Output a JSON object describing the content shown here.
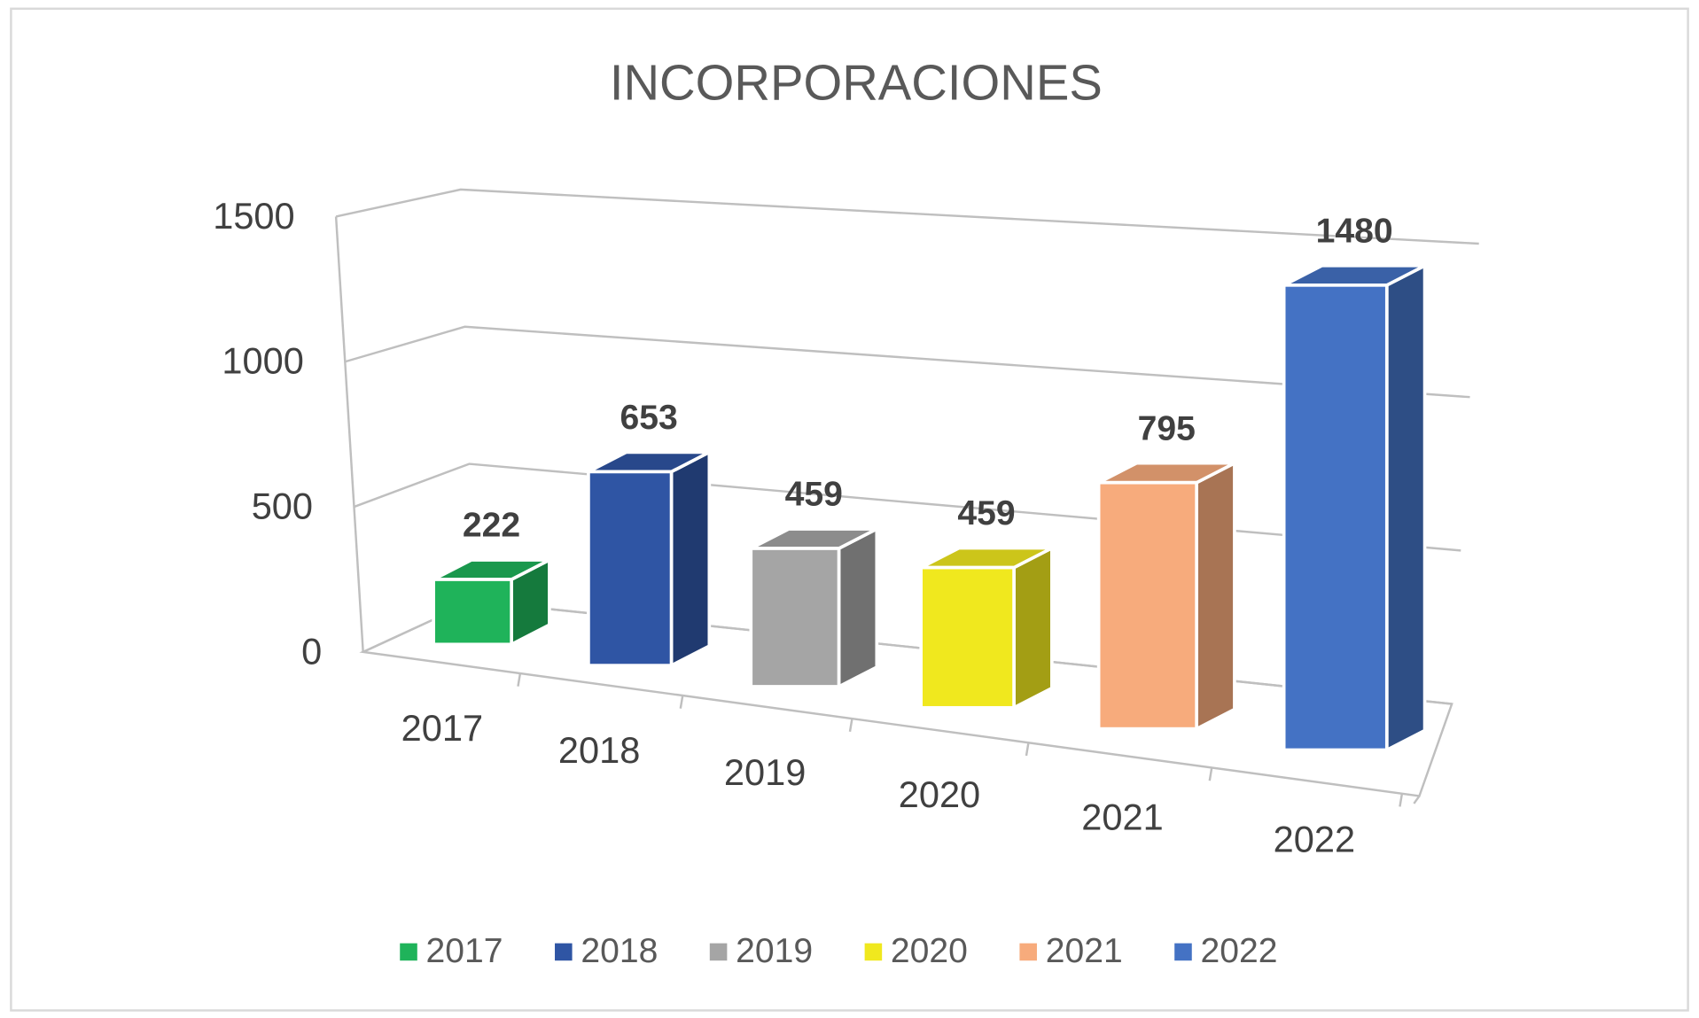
{
  "chart_data": {
    "type": "bar3d",
    "title": "INCORPORACIONES",
    "categories": [
      "2017",
      "2018",
      "2019",
      "2020",
      "2021",
      "2022"
    ],
    "values": [
      222,
      653,
      459,
      459,
      795,
      1480
    ],
    "colors": [
      "#1fb35a",
      "#2f55a4",
      "#a5a5a5",
      "#f0e81e",
      "#f7ab7c",
      "#4472c4"
    ],
    "ylim": [
      0,
      1500
    ],
    "yticks": [
      0,
      500,
      1000,
      1500
    ],
    "grid": true,
    "legend": "bottom"
  }
}
